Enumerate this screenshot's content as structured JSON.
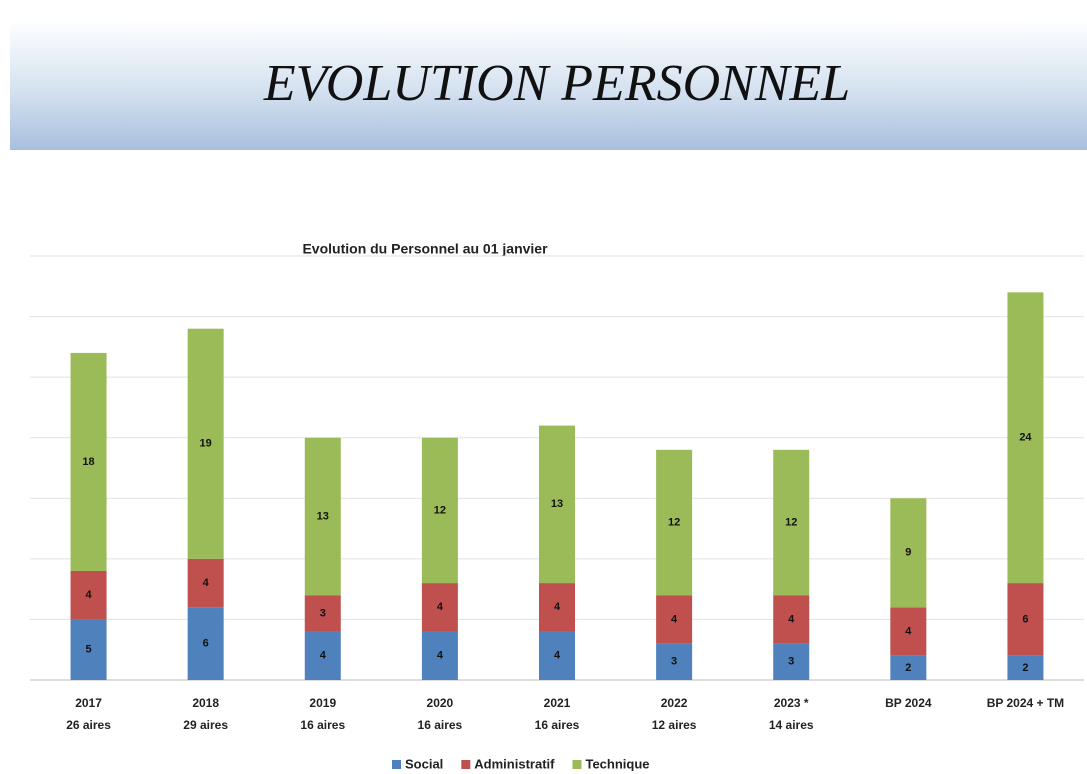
{
  "header": {
    "title": "EVOLUTION PERSONNEL"
  },
  "chart_data": {
    "type": "stacked_bar",
    "title": "Evolution du Personnel au 01 janvier",
    "categories": [
      [
        "2017",
        "26 aires"
      ],
      [
        "2018",
        "29 aires"
      ],
      [
        "2019",
        "16 aires"
      ],
      [
        "2020",
        "16 aires"
      ],
      [
        "2021",
        "16 aires"
      ],
      [
        "2022",
        "12 aires"
      ],
      [
        "2023 *",
        "14 aires"
      ],
      [
        "BP 2024"
      ],
      [
        "BP 2024 + TM"
      ]
    ],
    "series": [
      {
        "name": "Social",
        "color": "#4f81bd",
        "values": [
          5,
          6,
          4,
          4,
          4,
          3,
          3,
          2,
          2
        ]
      },
      {
        "name": "Administratif",
        "color": "#c0504d",
        "values": [
          4,
          4,
          3,
          4,
          4,
          4,
          4,
          4,
          6
        ]
      },
      {
        "name": "Technique",
        "color": "#9bbb59",
        "values": [
          18,
          19,
          13,
          12,
          13,
          12,
          12,
          9,
          24
        ]
      }
    ],
    "ylim": [
      0,
      35
    ],
    "yticks": [
      0,
      5,
      10,
      15,
      20,
      25,
      30,
      35
    ],
    "grid": true,
    "legend": "bottom"
  }
}
